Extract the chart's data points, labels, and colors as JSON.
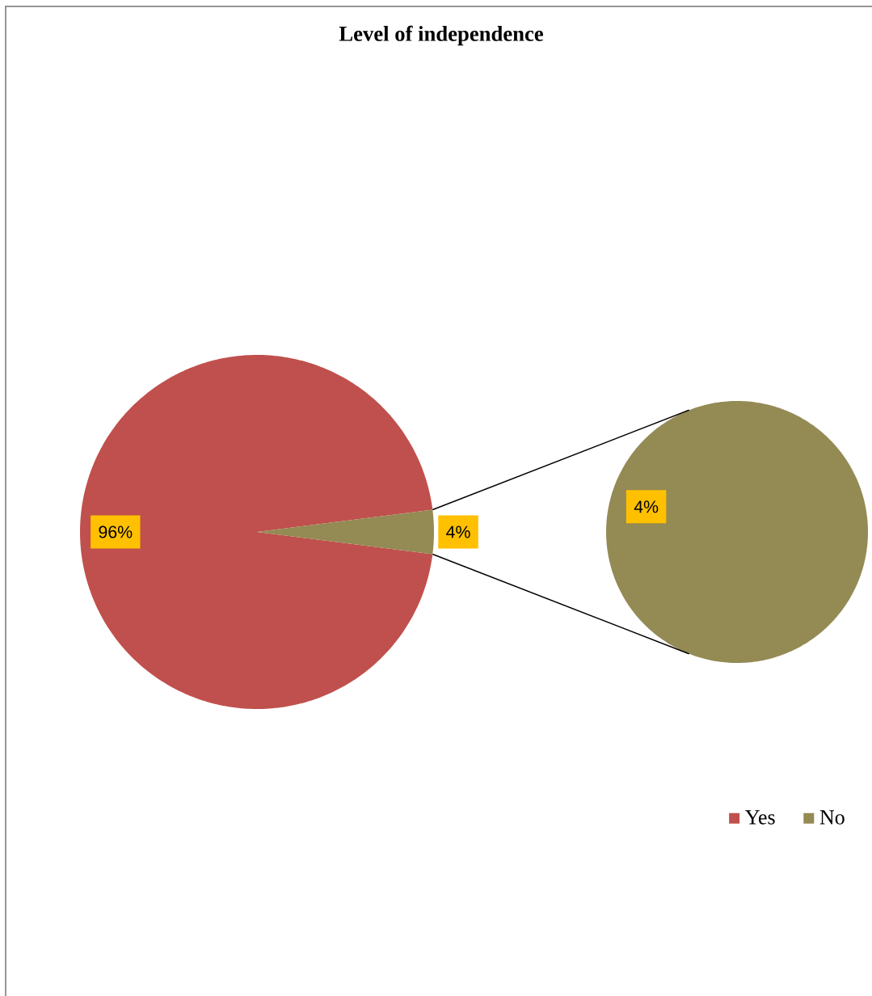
{
  "chart_data": [
    {
      "type": "pie",
      "title": "Level of independence",
      "categories": [
        "Yes",
        "No"
      ],
      "values": [
        96,
        4
      ],
      "colors": [
        "#c0504d",
        "#948a54"
      ],
      "value_labels": [
        "96%",
        "4%"
      ],
      "legend": "bottom right"
    },
    {
      "type": "pie",
      "categories": [
        null
      ],
      "values": [
        4
      ],
      "colors": [
        "#948a54"
      ],
      "value_labels": [
        "4%"
      ]
    }
  ]
}
